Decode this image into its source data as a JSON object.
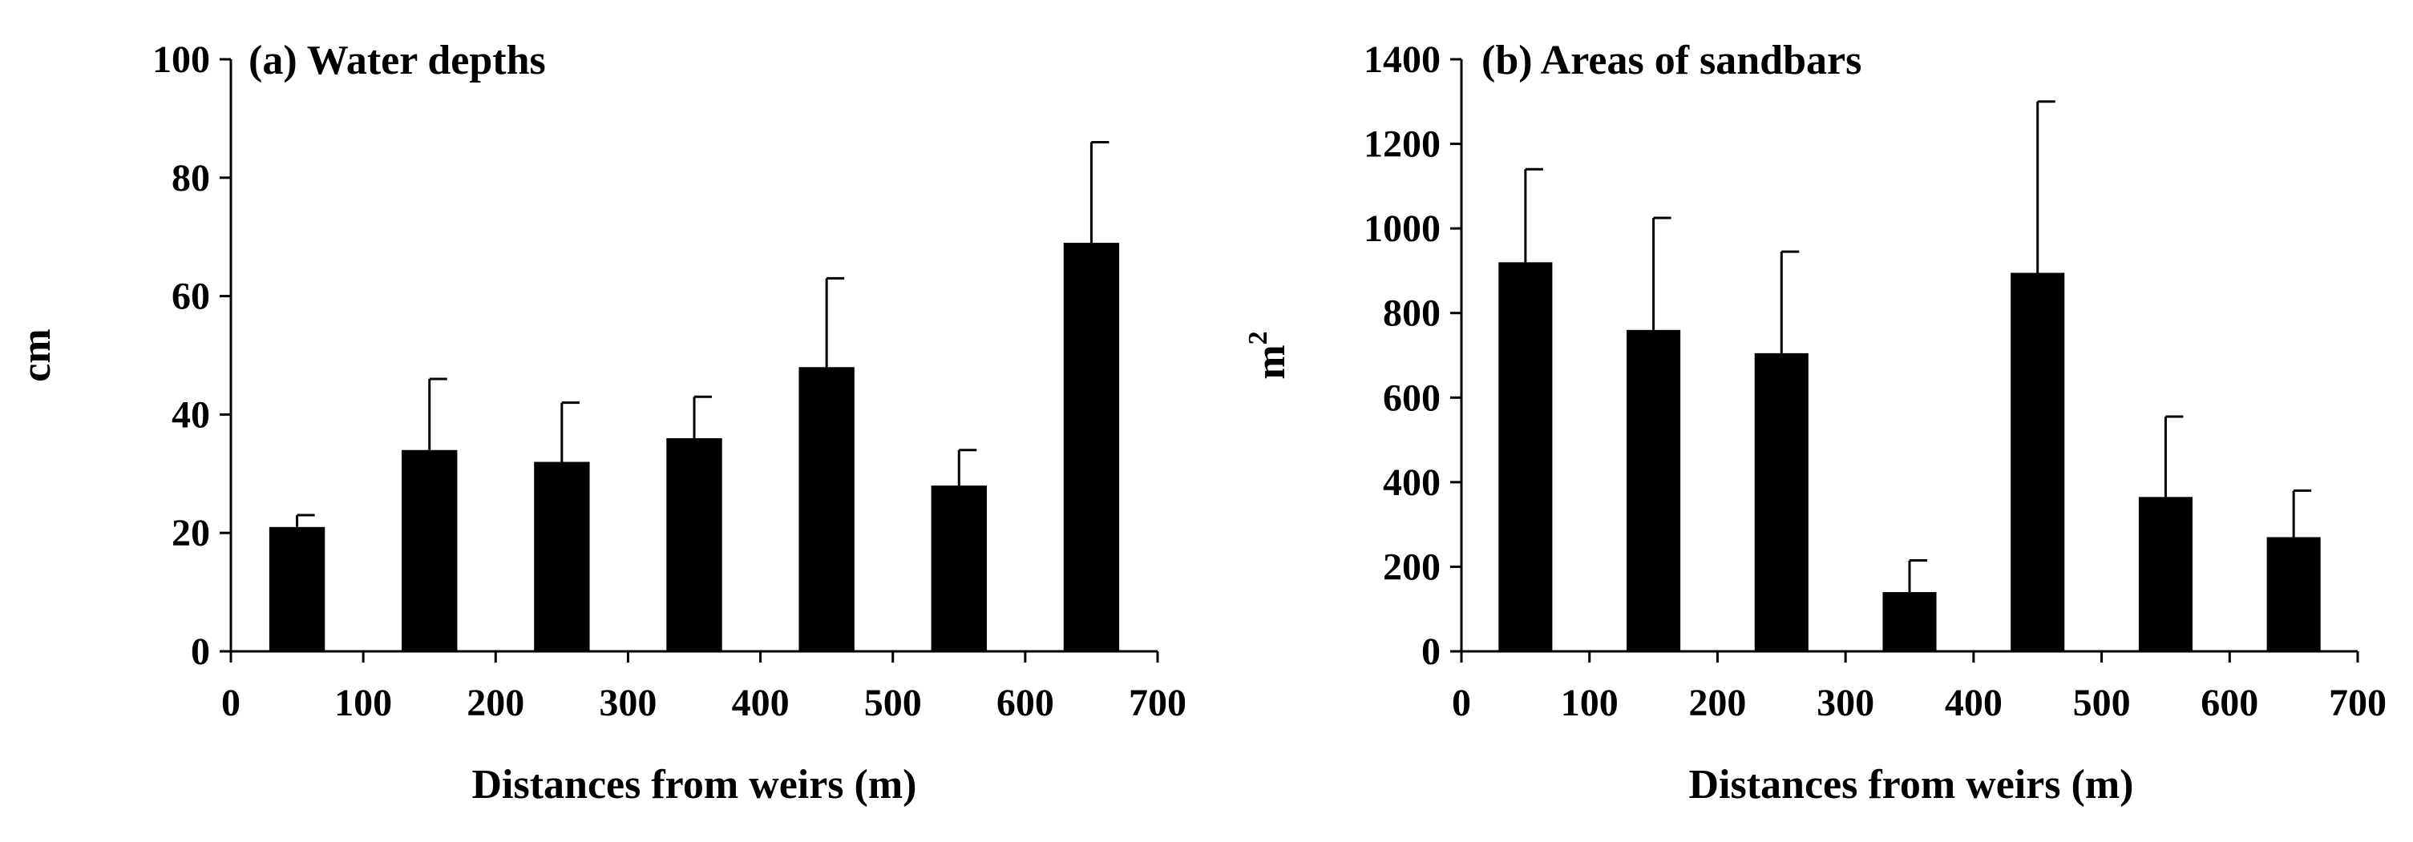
{
  "chart_data": [
    {
      "type": "bar",
      "title": "(a) Water depths",
      "xlabel": "Distances from weirs  (m)",
      "ylabel": "cm",
      "ylabel_sup": "",
      "xlim": [
        0,
        700
      ],
      "ylim": [
        0,
        100
      ],
      "xticks": [
        0,
        100,
        200,
        300,
        400,
        500,
        600,
        700
      ],
      "yticks": [
        0,
        20,
        40,
        60,
        80,
        100
      ],
      "x": [
        50,
        150,
        250,
        350,
        450,
        550,
        650
      ],
      "values": [
        21,
        34,
        32,
        36,
        48,
        28,
        69
      ],
      "errors": [
        2,
        12,
        10,
        7,
        15,
        6,
        17
      ],
      "bar_color": "#000000",
      "grid": false
    },
    {
      "type": "bar",
      "title": "(b) Areas of sandbars",
      "xlabel": "Distances from weirs  (m)",
      "ylabel": "m",
      "ylabel_sup": "2",
      "xlim": [
        0,
        700
      ],
      "ylim": [
        0,
        1400
      ],
      "xticks": [
        0,
        100,
        200,
        300,
        400,
        500,
        600,
        700
      ],
      "yticks": [
        0,
        200,
        400,
        600,
        800,
        1000,
        1200,
        1400
      ],
      "x": [
        50,
        150,
        250,
        350,
        450,
        550,
        650
      ],
      "values": [
        920,
        760,
        705,
        140,
        895,
        365,
        270
      ],
      "errors": [
        220,
        265,
        240,
        75,
        405,
        190,
        110
      ],
      "bar_color": "#000000",
      "grid": false
    }
  ]
}
